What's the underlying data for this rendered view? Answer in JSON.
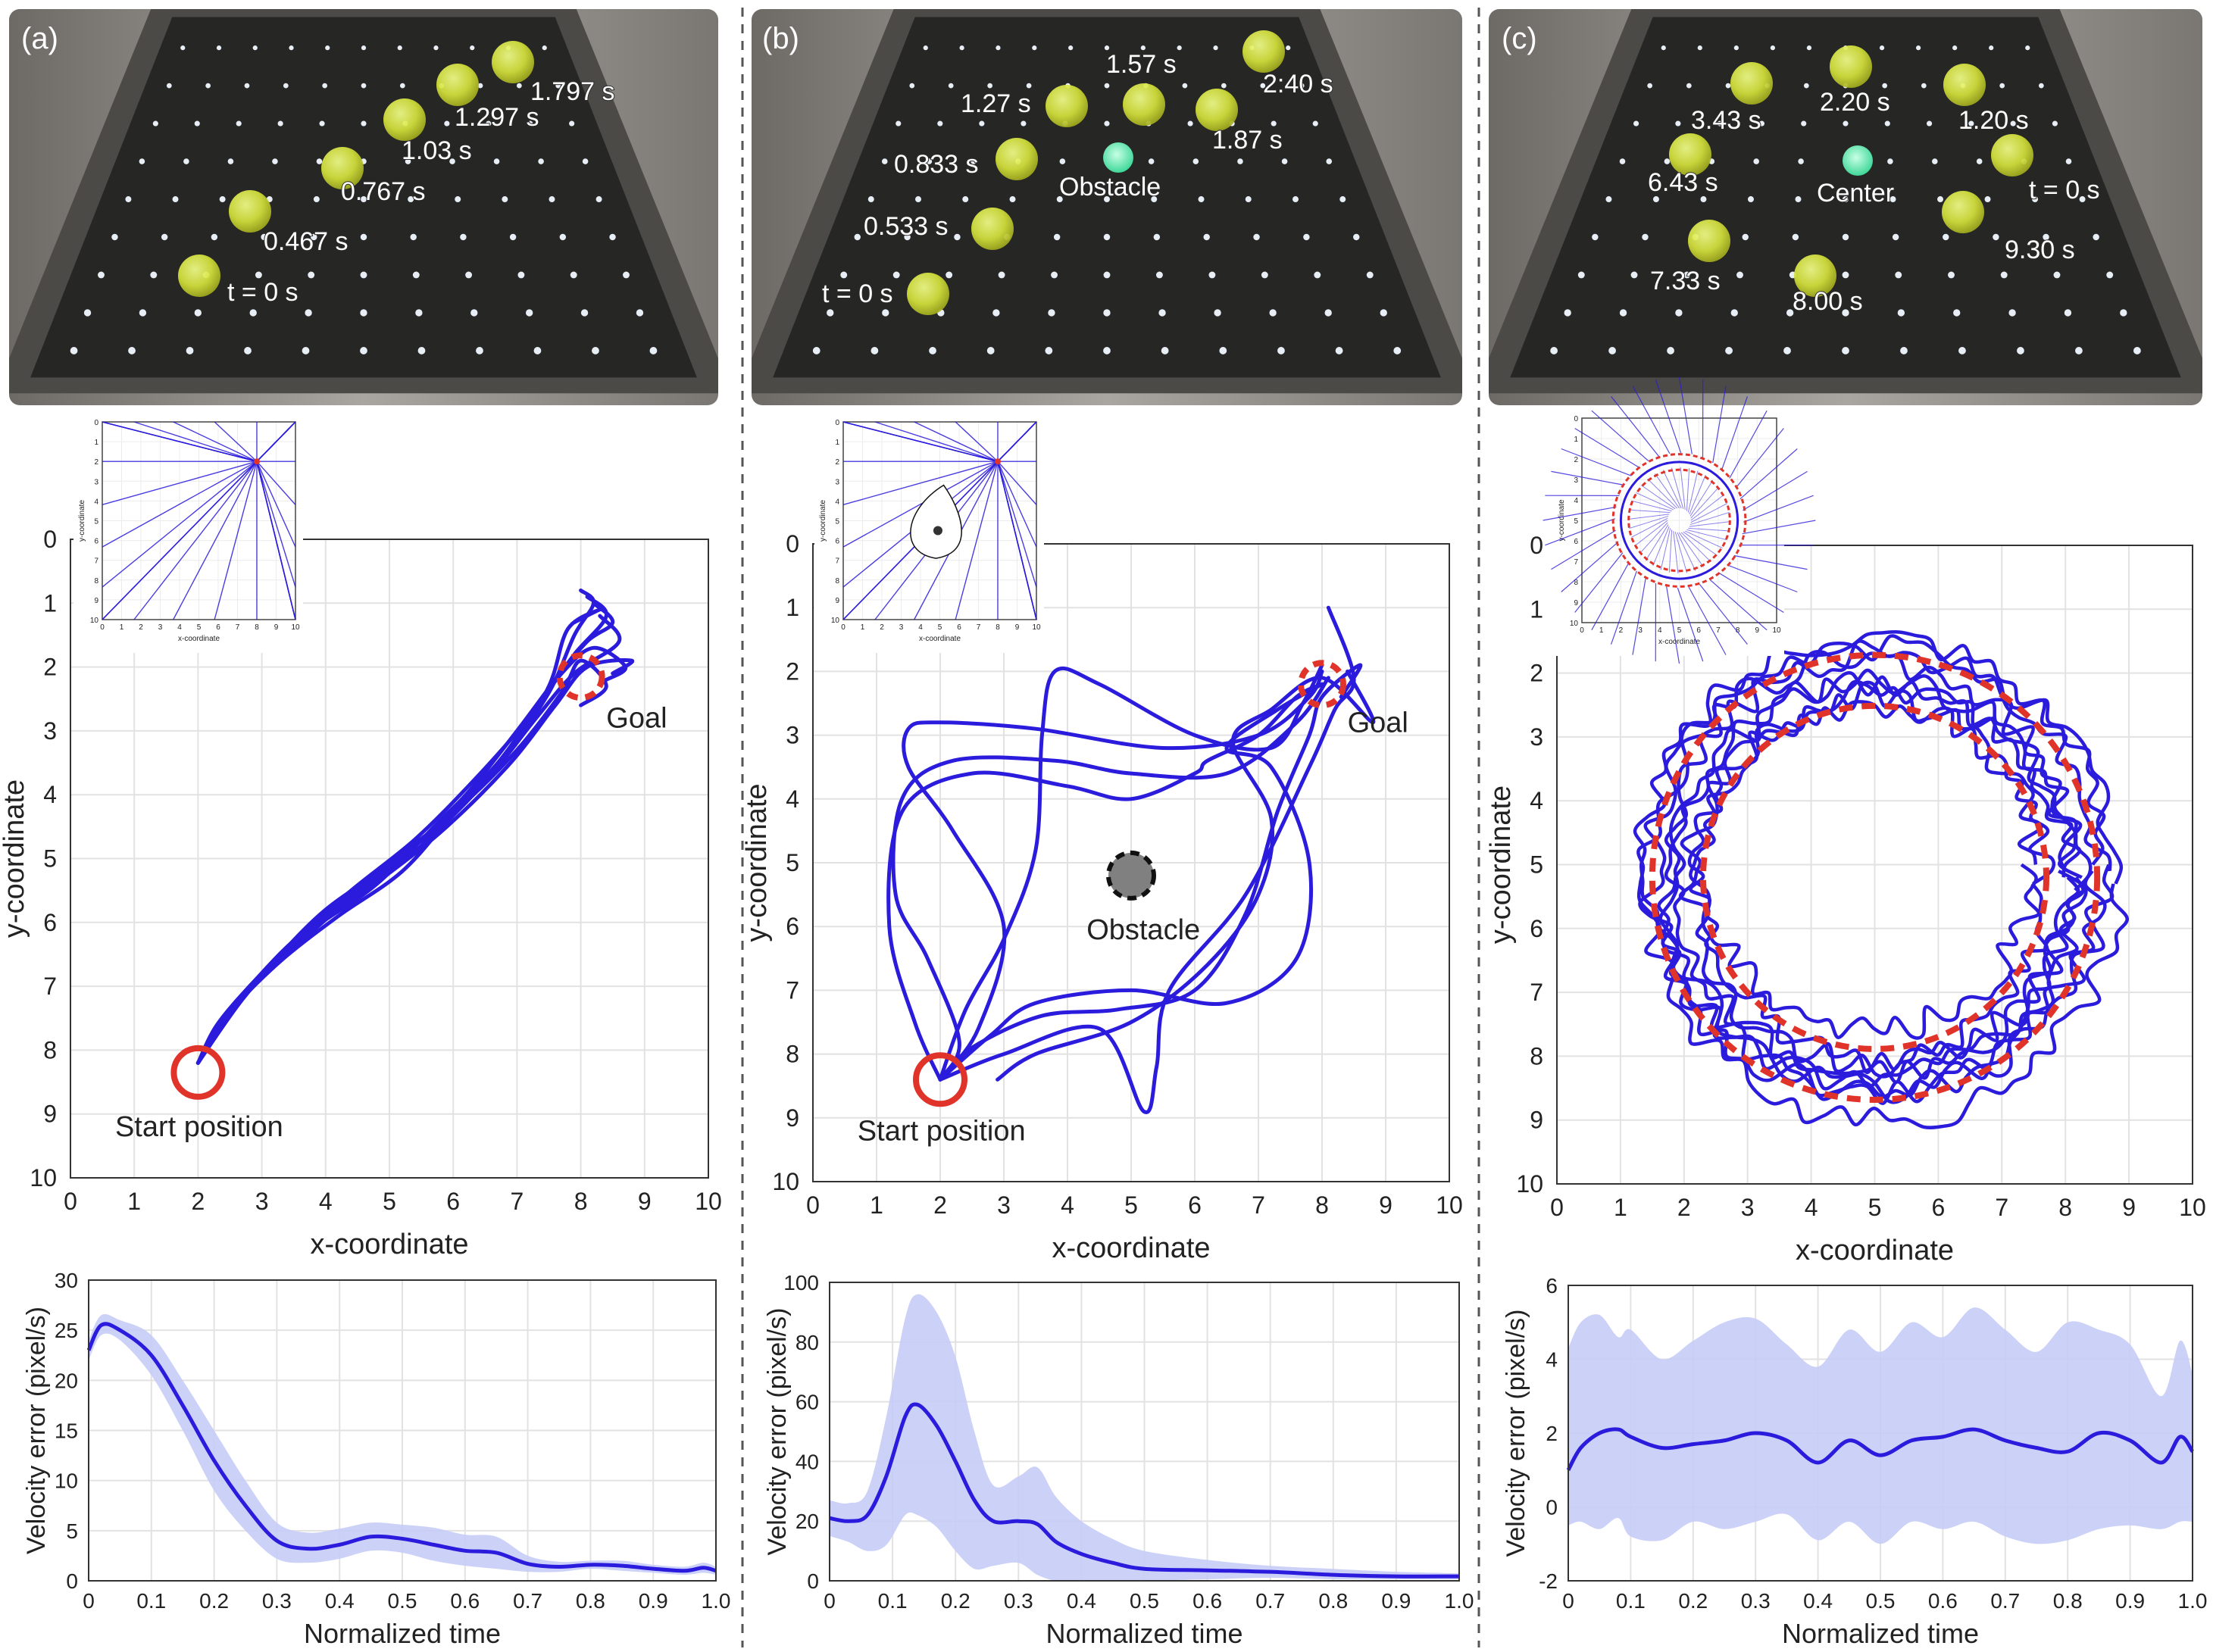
{
  "panels": [
    {
      "label": "(a)",
      "photo_labels": [
        "t = 0 s",
        "0.467 s",
        "0.767 s",
        "1.03 s",
        "1.297 s",
        "1.797 s"
      ],
      "traj_annotations": {
        "goal": "Goal",
        "start": "Start position"
      },
      "vel_ylim": [
        0,
        30
      ],
      "vel_yticks": [
        0,
        5,
        10,
        15,
        20,
        25,
        30
      ]
    },
    {
      "label": "(b)",
      "photo_labels": [
        "t = 0 s",
        "0.533 s",
        "0.833 s",
        "1.27 s",
        "1.57 s",
        "1.87 s",
        "2:40 s",
        "Obstacle"
      ],
      "traj_annotations": {
        "goal": "Goal",
        "start": "Start position",
        "obstacle": "Obstacle"
      },
      "vel_ylim": [
        0,
        100
      ],
      "vel_yticks": [
        0,
        20,
        40,
        60,
        80,
        100
      ]
    },
    {
      "label": "(c)",
      "photo_labels": [
        "3.43 s",
        "2.20 s",
        "1.20 s",
        "6.43 s",
        "Center",
        "t = 0 s",
        "7.33 s",
        "8.00 s",
        "9.30 s"
      ],
      "traj_annotations": {},
      "vel_ylim": [
        -2,
        6
      ],
      "vel_yticks": [
        -2,
        0,
        2,
        4,
        6
      ]
    }
  ],
  "axes": {
    "x_label": "x-coordinate",
    "y_label": "y-coordinate",
    "time_label": "Normalized time",
    "vel_label": "Velocity error (pixel/s)",
    "traj_ticks": [
      0,
      1,
      2,
      3,
      4,
      5,
      6,
      7,
      8,
      9,
      10
    ],
    "time_ticks": [
      "0",
      "0.1",
      "0.2",
      "0.3",
      "0.4",
      "0.5",
      "0.6",
      "0.7",
      "0.8",
      "0.9",
      "1.0"
    ],
    "inset_x_label": "x-coordinate",
    "inset_y_label": "y-coordinate"
  },
  "colors": {
    "trajectory": "#2b1bdc",
    "target": "#e0342a",
    "band": "#c6ccf7",
    "obstacle": "#808080",
    "grid": "#e2e2e2"
  },
  "chart_data": [
    {
      "type": "line",
      "panel": "a",
      "xlim": [
        0,
        10
      ],
      "ylim": [
        0,
        10
      ],
      "y_reversed": true,
      "start": [
        2,
        8.35
      ],
      "goal": [
        8,
        2.15
      ],
      "series": [
        {
          "x": [
            2.0,
            2.5,
            3.2,
            4.0,
            5.0,
            6.0,
            6.8,
            7.5,
            7.9,
            8.2,
            8.0
          ],
          "y": [
            8.2,
            7.4,
            6.6,
            5.8,
            5.1,
            4.3,
            3.4,
            2.4,
            1.5,
            1.0,
            0.8
          ]
        },
        {
          "x": [
            2.0,
            2.4,
            3.0,
            3.8,
            4.8,
            5.8,
            6.7,
            7.4,
            7.9,
            8.4,
            8.1
          ],
          "y": [
            8.2,
            7.5,
            6.8,
            6.1,
            5.4,
            4.4,
            3.5,
            2.5,
            1.8,
            1.2,
            0.9
          ]
        },
        {
          "x": [
            2.0,
            2.6,
            3.4,
            4.3,
            5.3,
            6.2,
            7.0,
            7.6,
            8.1,
            8.5,
            8.2
          ],
          "y": [
            8.2,
            7.3,
            6.5,
            5.7,
            4.9,
            4.0,
            3.0,
            2.2,
            1.6,
            1.3,
            1.0
          ]
        },
        {
          "x": [
            2.0,
            2.3,
            2.9,
            3.6,
            4.5,
            5.5,
            6.5,
            7.3,
            7.9,
            8.6,
            8.3
          ],
          "y": [
            8.2,
            7.6,
            6.9,
            6.2,
            5.6,
            4.8,
            3.8,
            2.8,
            2.1,
            1.6,
            1.2
          ]
        },
        {
          "x": [
            2.0,
            2.7,
            3.5,
            4.4,
            5.4,
            6.3,
            7.1,
            7.7,
            8.2,
            8.7,
            8.4
          ],
          "y": [
            8.2,
            7.2,
            6.3,
            5.5,
            4.7,
            3.8,
            2.9,
            2.1,
            1.7,
            2.0,
            2.2
          ]
        },
        {
          "x": [
            2.0,
            2.5,
            3.1,
            3.9,
            4.9,
            5.9,
            6.9,
            7.6,
            8.1,
            8.8,
            8.5
          ],
          "y": [
            8.2,
            7.4,
            6.7,
            6.0,
            5.3,
            4.5,
            3.5,
            2.6,
            2.0,
            1.9,
            2.1
          ]
        },
        {
          "x": [
            2.0,
            2.4,
            3.2,
            4.1,
            5.1,
            6.1,
            7.0,
            7.7,
            8.0,
            8.4,
            8.0
          ],
          "y": [
            8.2,
            7.5,
            6.6,
            5.8,
            5.0,
            4.2,
            3.3,
            2.4,
            1.9,
            2.3,
            2.6
          ]
        },
        {
          "x": [
            2.0,
            2.6,
            3.3,
            4.2,
            5.2,
            6.0,
            6.9,
            7.5,
            7.8,
            8.3,
            7.9
          ],
          "y": [
            8.2,
            7.3,
            6.6,
            5.9,
            5.2,
            4.3,
            3.3,
            2.3,
            1.4,
            1.1,
            1.3
          ]
        }
      ]
    },
    {
      "type": "line",
      "panel": "b",
      "xlim": [
        0,
        10
      ],
      "ylim": [
        0,
        10
      ],
      "y_reversed": true,
      "start": [
        2,
        8.4
      ],
      "goal": [
        8,
        2.2
      ],
      "obstacle": [
        5,
        5.2
      ],
      "series": [
        {
          "x": [
            2.0,
            2.6,
            3.0,
            2.2,
            1.5,
            1.5,
            2.0,
            3.5,
            5.5,
            7.0,
            7.8,
            8.0
          ],
          "y": [
            8.4,
            7.6,
            6.0,
            4.5,
            3.5,
            2.9,
            2.8,
            2.9,
            3.2,
            3.0,
            2.4,
            2.0
          ]
        },
        {
          "x": [
            2.0,
            2.3,
            1.8,
            1.3,
            1.4,
            2.2,
            3.8,
            5.0,
            6.5,
            7.6,
            8.1
          ],
          "y": [
            8.4,
            7.8,
            6.5,
            5.5,
            4.0,
            3.4,
            3.4,
            3.6,
            3.6,
            2.8,
            2.1
          ]
        },
        {
          "x": [
            2.0,
            2.8,
            3.5,
            5.0,
            6.5,
            7.6,
            7.8,
            7.2,
            6.5,
            7.3,
            8.0
          ],
          "y": [
            8.4,
            7.7,
            7.2,
            7.0,
            7.2,
            6.5,
            5.0,
            3.5,
            3.2,
            2.6,
            2.2
          ]
        },
        {
          "x": [
            2.0,
            2.4,
            3.0,
            3.5,
            3.6,
            3.8,
            4.5,
            6.0,
            7.2,
            7.7,
            8.0
          ],
          "y": [
            8.4,
            7.3,
            6.2,
            4.8,
            3.0,
            2.0,
            2.2,
            3.0,
            3.2,
            2.5,
            1.9
          ]
        },
        {
          "x": [
            2.0,
            3.0,
            4.5,
            5.2,
            5.4,
            5.6,
            6.8,
            7.8,
            8.2,
            8.5,
            8.1
          ],
          "y": [
            8.4,
            8.0,
            7.6,
            8.9,
            8.2,
            7.0,
            5.5,
            3.5,
            2.6,
            2.1,
            1.0
          ]
        },
        {
          "x": [
            2.0,
            1.6,
            1.2,
            1.4,
            2.5,
            4.0,
            5.0,
            6.0,
            6.2,
            7.0,
            7.6,
            8.0
          ],
          "y": [
            8.4,
            7.5,
            6.0,
            4.2,
            3.6,
            3.8,
            4.0,
            3.6,
            3.4,
            3.0,
            2.4,
            2.2
          ]
        },
        {
          "x": [
            2.0,
            2.5,
            3.6,
            4.8,
            6.0,
            6.8,
            7.3,
            7.8,
            8.0,
            8.6,
            8.3
          ],
          "y": [
            8.4,
            7.9,
            7.4,
            7.3,
            7.0,
            5.8,
            4.2,
            3.0,
            2.4,
            1.9,
            2.4
          ]
        },
        {
          "x": [
            2.9,
            3.5,
            5.0,
            6.2,
            7.0,
            7.2,
            6.6,
            7.2,
            8.0,
            8.8,
            8.4
          ],
          "y": [
            8.4,
            8.0,
            7.5,
            6.6,
            5.5,
            4.3,
            3.1,
            2.6,
            2.1,
            2.8,
            2.0
          ]
        }
      ]
    },
    {
      "type": "line",
      "panel": "c",
      "xlim": [
        0,
        10
      ],
      "ylim": [
        0,
        10
      ],
      "y_reversed": true,
      "center": [
        5,
        5.2
      ],
      "target_radii": [
        3.5,
        2.7
      ],
      "rings": [
        {
          "cx": 5.0,
          "cy": 5.2,
          "r": 3.1
        },
        {
          "cx": 5.1,
          "cy": 5.1,
          "r": 3.4
        },
        {
          "cx": 4.9,
          "cy": 5.3,
          "r": 2.8
        },
        {
          "cx": 5.0,
          "cy": 5.0,
          "r": 3.6
        },
        {
          "cx": 5.2,
          "cy": 5.2,
          "r": 2.9
        },
        {
          "cx": 4.8,
          "cy": 5.1,
          "r": 3.3
        },
        {
          "cx": 5.0,
          "cy": 5.4,
          "r": 3.2
        },
        {
          "cx": 5.1,
          "cy": 5.3,
          "r": 3.7
        },
        {
          "cx": 4.9,
          "cy": 5.0,
          "r": 2.6
        }
      ]
    },
    {
      "type": "area",
      "panel": "a",
      "xlim": [
        0,
        1
      ],
      "ylim": [
        0,
        30
      ],
      "x": [
        0,
        0.02,
        0.05,
        0.1,
        0.15,
        0.2,
        0.25,
        0.3,
        0.35,
        0.4,
        0.45,
        0.5,
        0.55,
        0.6,
        0.65,
        0.7,
        0.75,
        0.8,
        0.85,
        0.9,
        0.95,
        0.98,
        1.0
      ],
      "mean": [
        23,
        25.5,
        25,
        22.5,
        17.5,
        12,
        7.5,
        4.0,
        3.2,
        3.6,
        4.4,
        4.2,
        3.6,
        3.0,
        2.8,
        1.7,
        1.4,
        1.6,
        1.5,
        1.2,
        1.0,
        1.3,
        1.0
      ],
      "upper": [
        24,
        26.5,
        26,
        24.5,
        20,
        15,
        10,
        5.8,
        4.8,
        5.2,
        5.8,
        5.6,
        5.3,
        4.6,
        4.4,
        2.5,
        1.9,
        2.0,
        2.0,
        1.6,
        1.4,
        1.8,
        1.4
      ],
      "lower": [
        22,
        24.5,
        24,
        20.5,
        15,
        9,
        5.0,
        2.2,
        1.8,
        2.2,
        3.0,
        2.8,
        2.0,
        1.5,
        1.2,
        0.9,
        0.9,
        1.2,
        1.0,
        0.8,
        0.6,
        0.8,
        0.6
      ]
    },
    {
      "type": "area",
      "panel": "b",
      "xlim": [
        0,
        1
      ],
      "ylim": [
        0,
        100
      ],
      "x": [
        0,
        0.03,
        0.06,
        0.09,
        0.12,
        0.14,
        0.17,
        0.2,
        0.23,
        0.26,
        0.3,
        0.33,
        0.36,
        0.4,
        0.45,
        0.5,
        0.6,
        0.7,
        0.8,
        0.9,
        1.0
      ],
      "mean": [
        21,
        20,
        22,
        35,
        55,
        59,
        52,
        40,
        27,
        20,
        20,
        19,
        13,
        9,
        6,
        4,
        3.5,
        3,
        2,
        1.5,
        1.5
      ],
      "upper": [
        27,
        26,
        30,
        55,
        88,
        96,
        90,
        75,
        50,
        32,
        35,
        38,
        28,
        20,
        14,
        10,
        7,
        5,
        4,
        3,
        2.5
      ],
      "lower": [
        15,
        13,
        10,
        12,
        22,
        22,
        18,
        10,
        4,
        5,
        6,
        2,
        0,
        0,
        0,
        0,
        0.5,
        1,
        0.5,
        0.5,
        0.5
      ]
    },
    {
      "type": "area",
      "panel": "c",
      "xlim": [
        0,
        1
      ],
      "ylim": [
        -2,
        6
      ],
      "x": [
        0,
        0.02,
        0.05,
        0.08,
        0.1,
        0.15,
        0.2,
        0.25,
        0.3,
        0.35,
        0.4,
        0.45,
        0.5,
        0.55,
        0.6,
        0.65,
        0.7,
        0.75,
        0.8,
        0.85,
        0.9,
        0.95,
        0.98,
        1.0
      ],
      "mean": [
        1.0,
        1.6,
        2.0,
        2.1,
        1.9,
        1.6,
        1.7,
        1.8,
        2.0,
        1.8,
        1.2,
        1.8,
        1.4,
        1.8,
        1.9,
        2.1,
        1.8,
        1.6,
        1.5,
        2.0,
        1.8,
        1.2,
        1.9,
        1.5
      ],
      "upper": [
        4.3,
        5.0,
        5.2,
        4.6,
        4.8,
        4.0,
        4.5,
        5.0,
        5.1,
        4.4,
        3.8,
        4.8,
        4.2,
        5.0,
        4.6,
        5.4,
        4.8,
        4.2,
        5.0,
        4.8,
        4.4,
        3.0,
        4.5,
        3.6
      ],
      "lower": [
        -0.5,
        -0.4,
        -0.6,
        -0.3,
        -0.8,
        -0.9,
        -0.4,
        -0.6,
        -0.4,
        -0.2,
        -0.9,
        -0.4,
        -1.0,
        -0.4,
        -0.6,
        -0.4,
        -0.8,
        -1.0,
        -0.9,
        -0.6,
        -0.5,
        -0.6,
        -0.4,
        -0.4
      ]
    }
  ]
}
